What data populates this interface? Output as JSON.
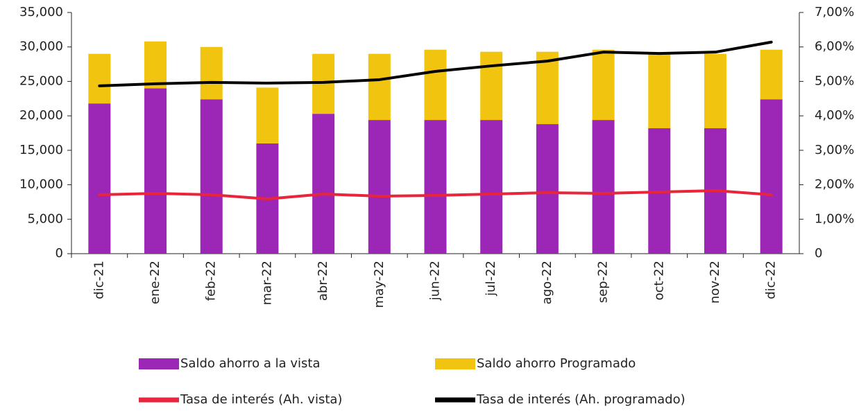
{
  "chart_data": {
    "type": "bar",
    "stacked": true,
    "categories": [
      "dic-21",
      "ene-22",
      "feb-22",
      "mar-22",
      "abr-22",
      "may-22",
      "jun-22",
      "jul-22",
      "ago-22",
      "sep-22",
      "oct-22",
      "nov-22",
      "dic-22"
    ],
    "series": [
      {
        "name": "Saldo ahorro a la vista",
        "type": "bar",
        "color": "#9c27b6",
        "values": [
          21800,
          24000,
          22400,
          16000,
          20300,
          19400,
          19400,
          19400,
          18800,
          19400,
          18200,
          18200,
          22400
        ]
      },
      {
        "name": "Saldo ahorro Programado",
        "type": "bar",
        "color": "#f1c40f",
        "values": [
          7200,
          6800,
          7600,
          8100,
          8700,
          9600,
          10200,
          9900,
          10500,
          10200,
          10800,
          10800,
          7200
        ]
      },
      {
        "name": "Tasa de interés (Ah. vista)",
        "type": "line",
        "axis": "y2",
        "color": "#e8253a",
        "values": [
          1.71,
          1.75,
          1.71,
          1.59,
          1.73,
          1.67,
          1.69,
          1.73,
          1.77,
          1.75,
          1.79,
          1.83,
          1.71
        ]
      },
      {
        "name": "Tasa de interés (Ah. programado)",
        "type": "line",
        "axis": "y2",
        "color": "#000000",
        "values": [
          4.87,
          4.93,
          4.97,
          4.95,
          4.97,
          5.05,
          5.29,
          5.45,
          5.59,
          5.85,
          5.81,
          5.85,
          6.14
        ]
      }
    ],
    "ylim": [
      0,
      35000
    ],
    "yticks": [
      0,
      {
        "value": 5000,
        "label": "5,000"
      },
      {
        "value": 10000,
        "label": "10,000"
      },
      {
        "value": 15000,
        "label": "15,000"
      },
      {
        "value": 20000,
        "label": "20,000"
      },
      {
        "value": 25000,
        "label": "25,000"
      },
      {
        "value": 30000,
        "label": "30,000"
      },
      {
        "value": 35000,
        "label": "35,000"
      }
    ],
    "y2lim": [
      0,
      7
    ],
    "y2ticks": [
      0,
      {
        "value": 1,
        "label": "1,00%"
      },
      {
        "value": 2,
        "label": "2,00%"
      },
      {
        "value": 3,
        "label": "3,00%"
      },
      {
        "value": 4,
        "label": "4,00%"
      },
      {
        "value": 5,
        "label": "5,00%"
      },
      {
        "value": 6,
        "label": "6,00%"
      },
      {
        "value": 7,
        "label": "7,00%"
      }
    ],
    "legend": "bottom"
  }
}
